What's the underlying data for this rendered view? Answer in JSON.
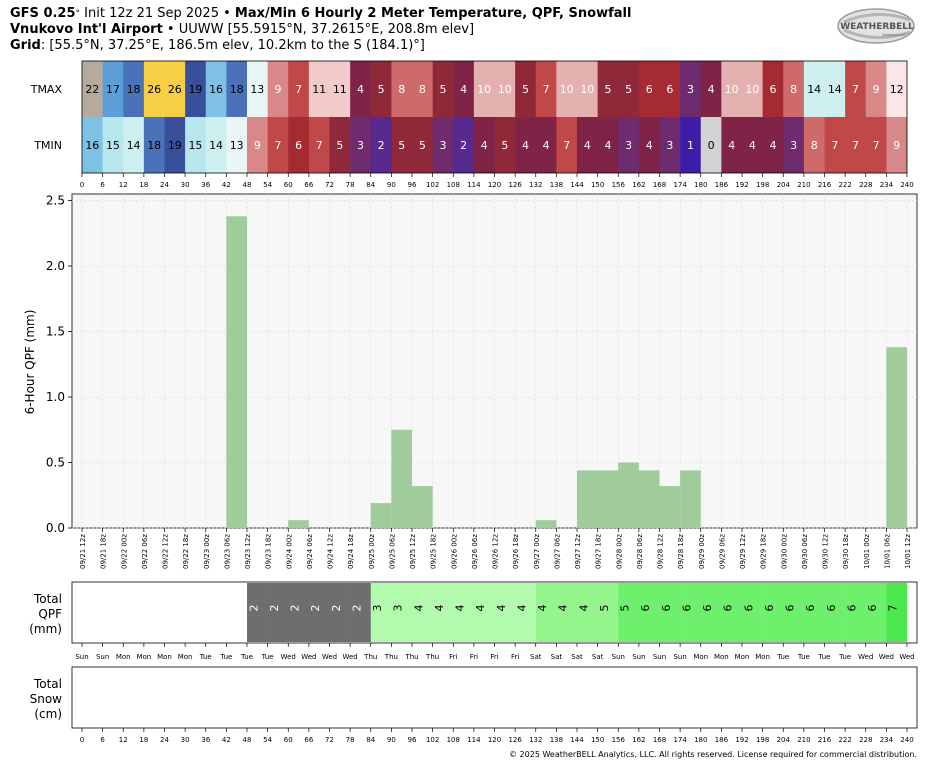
{
  "header": {
    "model": "GFS 0.25",
    "init_text": "Init 12z 21 Sep 2025",
    "title": "Max/Min 6 Hourly 2 Meter Temperature, QPF, Snowfall",
    "station_name": "Vnukovo Int'l Airport",
    "station_details": "UUWW [55.5915°N, 37.2615°E, 208.8m elev]",
    "grid_label": "Grid",
    "grid_details": "[55.5°N, 37.25°E, 186.5m elev, 10.2km to the S (184.1)°]"
  },
  "logo": {
    "text": "WEATHERBELL",
    "sub": "Analytics LLC"
  },
  "temperature_table": {
    "row_labels": [
      "TMAX",
      "TMIN"
    ],
    "tmax": [
      22,
      17,
      18,
      26,
      26,
      19,
      16,
      18,
      13,
      9,
      7,
      11,
      11,
      4,
      5,
      8,
      8,
      5,
      4,
      10,
      10,
      5,
      7,
      10,
      10,
      5,
      5,
      6,
      6,
      3,
      4,
      10,
      10,
      6,
      8,
      14,
      14,
      7,
      9,
      12
    ],
    "tmin": [
      16,
      15,
      14,
      18,
      19,
      15,
      14,
      13,
      9,
      7,
      6,
      7,
      5,
      3,
      2,
      5,
      5,
      3,
      2,
      4,
      5,
      4,
      4,
      7,
      4,
      4,
      3,
      4,
      3,
      1,
      0,
      4,
      4,
      4,
      3,
      8,
      7,
      7,
      7,
      9
    ],
    "hour_ticks": [
      0,
      6,
      12,
      18,
      24,
      30,
      36,
      42,
      48,
      54,
      60,
      66,
      72,
      78,
      84,
      90,
      96,
      102,
      108,
      114,
      120,
      126,
      132,
      138,
      144,
      150,
      156,
      162,
      168,
      174,
      180,
      186,
      192,
      198,
      204,
      210,
      216,
      222,
      228,
      234,
      240
    ]
  },
  "chart_data": {
    "type": "bar",
    "ylabel": "6-Hour QPF (mm)",
    "ylim": [
      0,
      2.55
    ],
    "yticks": [
      "0.0",
      "0.5",
      "1.0",
      "1.5",
      "2.0",
      "2.5"
    ],
    "grid": true,
    "categories": [
      "09/21 12z",
      "09/21 18z",
      "09/22 00z",
      "09/22 06z",
      "09/22 12z",
      "09/22 18z",
      "09/23 00z",
      "09/23 06z",
      "09/23 12z",
      "09/23 18z",
      "09/24 00z",
      "09/24 06z",
      "09/24 12z",
      "09/24 18z",
      "09/25 00z",
      "09/25 06z",
      "09/25 12z",
      "09/25 18z",
      "09/26 00z",
      "09/26 06z",
      "09/26 12z",
      "09/26 18z",
      "09/27 00z",
      "09/27 06z",
      "09/27 12z",
      "09/27 18z",
      "09/28 00z",
      "09/28 06z",
      "09/28 12z",
      "09/28 18z",
      "09/29 00z",
      "09/29 06z",
      "09/29 12z",
      "09/29 18z",
      "09/30 00z",
      "09/30 06z",
      "09/30 12z",
      "09/30 18z",
      "10/01 00z",
      "10/01 06z",
      "10/01 12z"
    ],
    "values": [
      0,
      0,
      0,
      0,
      0,
      0,
      0,
      0,
      2.38,
      0,
      0,
      0.06,
      0,
      0,
      0,
      0.19,
      0.75,
      0.32,
      0,
      0,
      0,
      0,
      0,
      0.06,
      0,
      0.44,
      0.44,
      0.5,
      0.44,
      0.32,
      0.44,
      0,
      0,
      0,
      0,
      0,
      0,
      0,
      0,
      0,
      1.38
    ]
  },
  "total_qpf": {
    "label_lines": [
      "Total",
      "QPF",
      "(mm)"
    ],
    "values": [
      "",
      "",
      "",
      "",
      "",
      "",
      "",
      "",
      "2",
      "2",
      "2",
      "2",
      "2",
      "2",
      "3",
      "3",
      "4",
      "4",
      "4",
      "4",
      "4",
      "4",
      "4",
      "4",
      "4",
      "5",
      "5",
      "6",
      "6",
      "6",
      "6",
      "6",
      "6",
      "6",
      "6",
      "6",
      "6",
      "6",
      "6",
      "7"
    ]
  },
  "days": [
    "Sun",
    "Sun",
    "Mon",
    "Mon",
    "Mon",
    "Mon",
    "Tue",
    "Tue",
    "Tue",
    "Tue",
    "Wed",
    "Wed",
    "Wed",
    "Wed",
    "Thu",
    "Thu",
    "Thu",
    "Thu",
    "Fri",
    "Fri",
    "Fri",
    "Fri",
    "Sat",
    "Sat",
    "Sat",
    "Sat",
    "Sun",
    "Sun",
    "Sun",
    "Sun",
    "Mon",
    "Mon",
    "Mon",
    "Mon",
    "Tue",
    "Tue",
    "Tue",
    "Tue",
    "Wed",
    "Wed",
    "Wed"
  ],
  "total_snow": {
    "label_lines": [
      "Total",
      "Snow",
      "(cm)"
    ],
    "values": []
  },
  "colors": {
    "bar": "#a0cc9c",
    "qpf_2": "#6e6e6e",
    "qpf_3": "#b3fbac",
    "qpf_4": "#93f58c",
    "qpf_5": "#6ff06c",
    "qpf_7": "#4de84d"
  },
  "footer": "© 2025 WeatherBELL Analytics, LLC. All rights reserved. License required for commercial distribution."
}
